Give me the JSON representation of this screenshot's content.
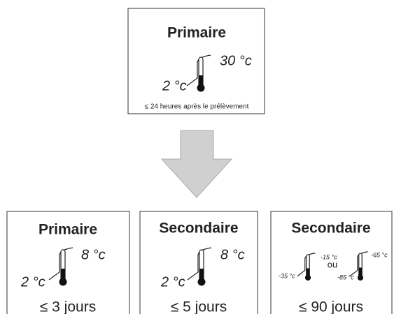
{
  "top": {
    "title": "Primaire",
    "high": "30 °c",
    "low": "2 °c",
    "caption": "≤ 24 heures après le prélèvement"
  },
  "boxes": [
    {
      "title": "Primaire",
      "high": "8 °c",
      "low": "2 °c",
      "duration": "≤ 3 jours"
    },
    {
      "title": "Secondaire",
      "high": "8 °c",
      "low": "2 °c",
      "duration": "≤ 5 jours"
    },
    {
      "title": "Secondaire",
      "thermometers": [
        {
          "high": "-15 °c",
          "low": "-35 °c"
        },
        {
          "high": "-65 °c",
          "low": "-85 °c"
        }
      ],
      "connector": "ou",
      "duration": "≤ 90 jours"
    }
  ]
}
